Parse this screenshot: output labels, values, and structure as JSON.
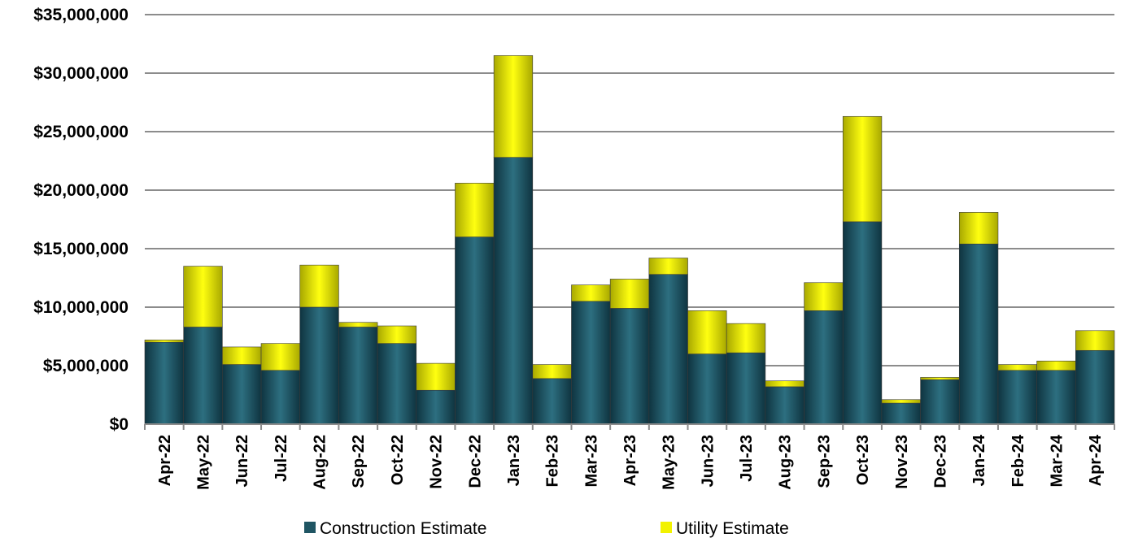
{
  "chart_data": {
    "type": "bar",
    "stacked": true,
    "title": "",
    "xlabel": "",
    "ylabel": "",
    "ylim": [
      0,
      35000000
    ],
    "y_ticks": [
      0,
      5000000,
      10000000,
      15000000,
      20000000,
      25000000,
      30000000,
      35000000
    ],
    "y_tick_labels": [
      "$0",
      "$5,000,000",
      "$10,000,000",
      "$15,000,000",
      "$20,000,000",
      "$25,000,000",
      "$30,000,000",
      "$35,000,000"
    ],
    "grid": true,
    "legend_position": "bottom",
    "categories": [
      "Apr-22",
      "May-22",
      "Jun-22",
      "Jul-22",
      "Aug-22",
      "Sep-22",
      "Oct-22",
      "Nov-22",
      "Dec-22",
      "Jan-23",
      "Feb-23",
      "Mar-23",
      "Apr-23",
      "May-23",
      "Jun-23",
      "Jul-23",
      "Aug-23",
      "Sep-23",
      "Oct-23",
      "Nov-23",
      "Dec-23",
      "Jan-24",
      "Feb-24",
      "Mar-24",
      "Apr-24"
    ],
    "series": [
      {
        "name": "Construction Estimate",
        "color": "#1f5563",
        "values": [
          7000000,
          8300000,
          5100000,
          4600000,
          10000000,
          8300000,
          6900000,
          2900000,
          16000000,
          22800000,
          3900000,
          10500000,
          9900000,
          12800000,
          6000000,
          6100000,
          3200000,
          9700000,
          17300000,
          1800000,
          3800000,
          15400000,
          4600000,
          4600000,
          6300000
        ]
      },
      {
        "name": "Utility Estimate",
        "color": "#f2f200",
        "values": [
          200000,
          5200000,
          1500000,
          2300000,
          3600000,
          400000,
          1500000,
          2300000,
          4600000,
          8700000,
          1200000,
          1400000,
          2500000,
          1400000,
          3700000,
          2500000,
          500000,
          2400000,
          9000000,
          300000,
          200000,
          2700000,
          500000,
          800000,
          1700000
        ]
      }
    ]
  }
}
